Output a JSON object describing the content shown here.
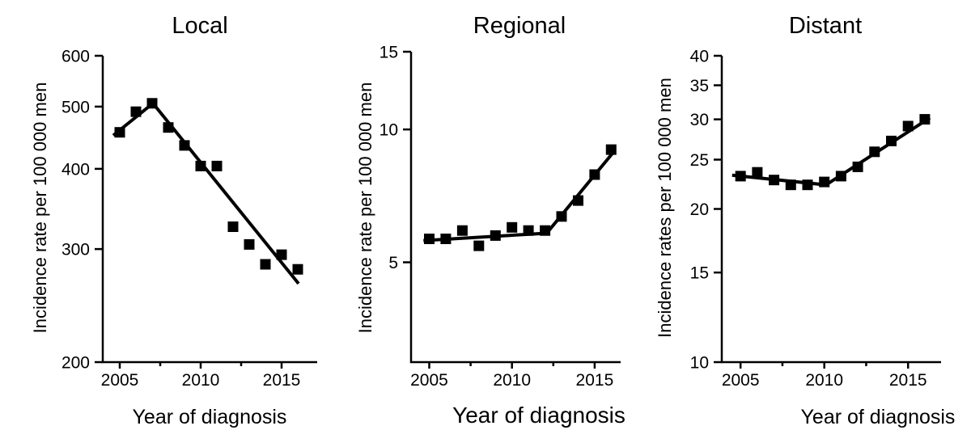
{
  "figure": {
    "background": "#ffffff",
    "ink_color": "#000000"
  },
  "chart_data": [
    {
      "type": "scatter",
      "title": "Local",
      "xlabel": "Year of diagnosis",
      "ylabel": "Incidence rate per 100 000 men",
      "yscale": "log",
      "legend": "none",
      "grid": "off",
      "x": [
        2005,
        2006,
        2007,
        2008,
        2009,
        2010,
        2011,
        2012,
        2013,
        2014,
        2015,
        2016
      ],
      "y": [
        456,
        491,
        506,
        464,
        435,
        404,
        404,
        325,
        305,
        284,
        294,
        279
      ],
      "trend_lines": [
        [
          [
            2004.6,
            451
          ],
          [
            2007.05,
            506
          ],
          [
            2016.05,
            265
          ]
        ]
      ],
      "yticks": [
        200,
        300,
        400,
        500,
        600
      ],
      "xticks": [
        2005,
        2010,
        2015
      ],
      "xticks_minor": [
        2007.5,
        2012.5
      ],
      "ylim": [
        200,
        600
      ],
      "xlim": [
        2003.95,
        2017.2
      ]
    },
    {
      "type": "scatter",
      "title": "Regional",
      "xlabel": "Year of diagnosis",
      "ylabel": "Incidence rate per 100 000 men",
      "yscale": "log",
      "legend": "none",
      "grid": "off",
      "x": [
        2005,
        2006,
        2007,
        2008,
        2009,
        2010,
        2011,
        2012,
        2013,
        2014,
        2015,
        2016
      ],
      "y": [
        5.65,
        5.65,
        5.9,
        5.45,
        5.75,
        6.0,
        5.9,
        5.9,
        6.35,
        6.9,
        7.9,
        9.0
      ],
      "trend_lines": [
        [
          [
            2004.65,
            5.6
          ],
          [
            2012.1,
            5.82
          ],
          [
            2016.1,
            8.85
          ]
        ]
      ],
      "yticks": [
        5,
        10,
        15
      ],
      "xticks": [
        2005,
        2010,
        2015
      ],
      "xticks_minor": [
        2007.5,
        2012.5
      ],
      "ylim": [
        2.97,
        15
      ],
      "xlim": [
        2003.9,
        2016.57
      ]
    },
    {
      "type": "scatter",
      "title": "Distant",
      "xlabel": "Year of diagnosis",
      "ylabel": "Incidence rates per 100 000 men",
      "yscale": "log",
      "legend": "none",
      "grid": "off",
      "x": [
        2005,
        2006,
        2007,
        2008,
        2009,
        2010,
        2011,
        2012,
        2013,
        2014,
        2015,
        2016
      ],
      "y": [
        23.2,
        23.6,
        22.8,
        22.3,
        22.3,
        22.6,
        23.2,
        24.2,
        25.9,
        27.2,
        29.1,
        30.0
      ],
      "trend_lines": [
        [
          [
            2004.5,
            23.3
          ],
          [
            2010.1,
            22.3
          ],
          [
            2016.3,
            30.2
          ]
        ]
      ],
      "yticks": [
        10,
        15,
        20,
        25,
        30,
        35,
        40
      ],
      "xticks": [
        2005,
        2010,
        2015
      ],
      "xticks_minor": [
        2007.5,
        2012.5
      ],
      "ylim": [
        10,
        40
      ],
      "xlim": [
        2003.88,
        2016.97
      ]
    }
  ]
}
